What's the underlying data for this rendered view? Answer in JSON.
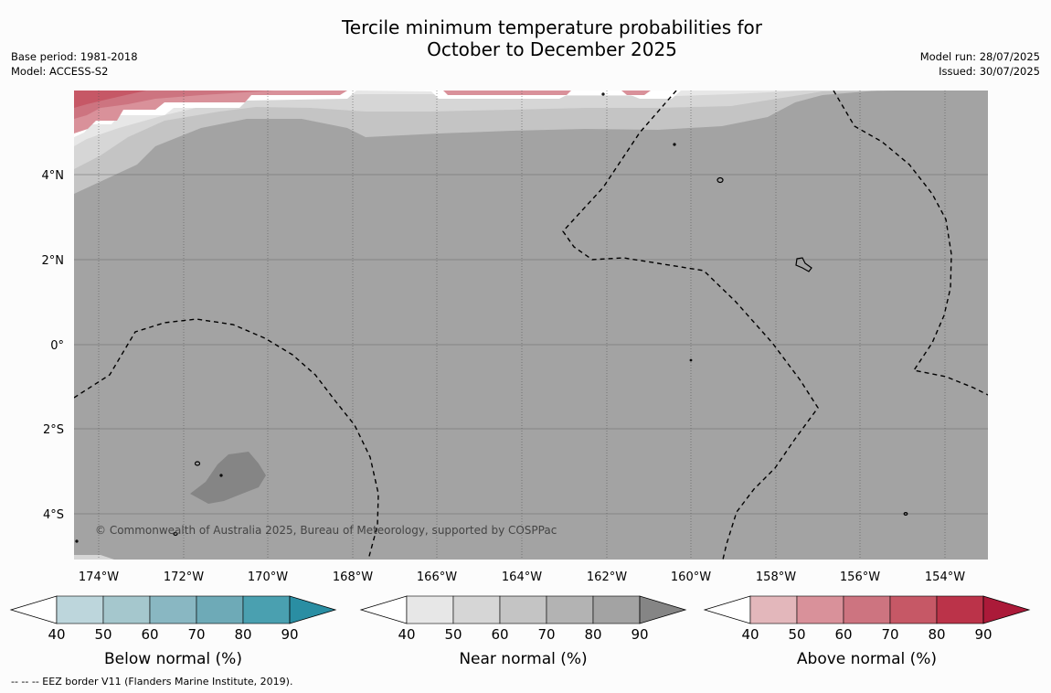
{
  "title_line1": "Tercile minimum temperature probabilities for",
  "title_line2": "October to December 2025",
  "meta_left": [
    "Base period: 1981-2018",
    "Model: ACCESS-S2"
  ],
  "meta_right": [
    "Model run: 28/07/2025",
    "Issued: 30/07/2025"
  ],
  "map": {
    "lat_labels": [
      "4°N",
      "2°N",
      "0°",
      "2°S",
      "4°S"
    ],
    "lon_labels": [
      "174°W",
      "172°W",
      "170°W",
      "168°W",
      "166°W",
      "164°W",
      "162°W",
      "160°W",
      "158°W",
      "156°W",
      "154°W"
    ],
    "copyright": "© Commonwealth of Australia 2025, Bureau of Meteorology, supported by COSPPac",
    "ocean_color": "#a3a3a3"
  },
  "colorbars": [
    {
      "label": "Below normal (%)",
      "ticks": [
        "40",
        "50",
        "60",
        "70",
        "80",
        "90"
      ],
      "colors": [
        "#bdd6dc",
        "#a5c7cd",
        "#89b7c2",
        "#6eaab7",
        "#4aa0b0",
        "#2a8ea3"
      ]
    },
    {
      "label": "Near normal (%)",
      "ticks": [
        "40",
        "50",
        "60",
        "70",
        "80",
        "90"
      ],
      "colors": [
        "#e7e7e7",
        "#d6d6d6",
        "#c4c4c4",
        "#b3b3b3",
        "#a3a3a3",
        "#858585"
      ]
    },
    {
      "label": "Above normal (%)",
      "ticks": [
        "40",
        "50",
        "60",
        "70",
        "80",
        "90"
      ],
      "colors": [
        "#e3b7bb",
        "#d9919a",
        "#cd7480",
        "#c65866",
        "#bb3349",
        "#ab1a39"
      ]
    }
  ],
  "footer": "--  --  -- EEZ border V11 (Flanders Marine Institute, 2019)."
}
